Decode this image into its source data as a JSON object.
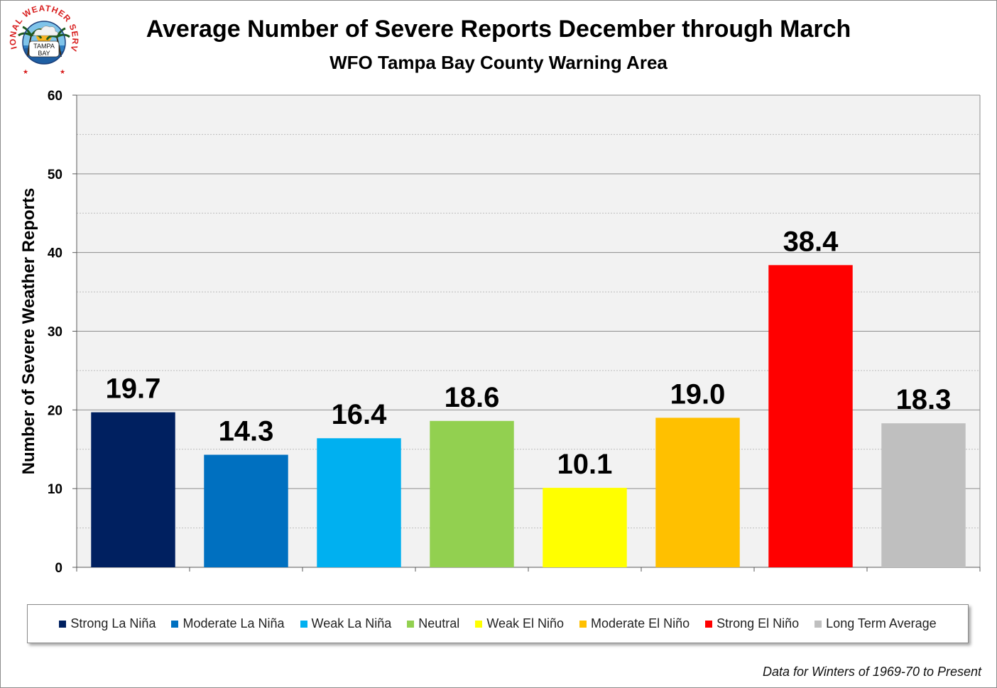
{
  "logo": {
    "arc_text": "NATIONAL WEATHER SERVICE",
    "center_text_1": "TAMPA",
    "center_text_2": "BAY"
  },
  "footnote": "Data for Winters of 1969-70 to Present",
  "chart_data": {
    "type": "bar",
    "title": "Average Number of Severe Reports December through March",
    "subtitle": "WFO Tampa Bay County Warning Area",
    "xlabel": "",
    "ylabel": "Number of Severe Weather Reports",
    "ylim": [
      0,
      60
    ],
    "yticks": [
      0,
      10,
      20,
      30,
      40,
      50,
      60
    ],
    "grid": true,
    "legend_position": "bottom",
    "categories": [
      "Strong La Niña",
      "Moderate La Niña",
      "Weak La Niña",
      "Neutral",
      "Weak El Niño",
      "Moderate El Niño",
      "Strong El Niño",
      "Long Term Average"
    ],
    "values": [
      19.7,
      14.3,
      16.4,
      18.6,
      10.1,
      19.0,
      38.4,
      18.3
    ],
    "value_labels": [
      "19.7",
      "14.3",
      "16.4",
      "18.6",
      "10.1",
      "19.0",
      "38.4",
      "18.3"
    ],
    "colors": [
      "#002060",
      "#0070C0",
      "#00B0F0",
      "#92D050",
      "#FFFF00",
      "#FFC000",
      "#FF0000",
      "#BFBFBF"
    ]
  }
}
